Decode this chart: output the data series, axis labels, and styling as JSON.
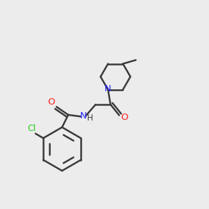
{
  "bg_color": "#ececec",
  "bond_color": "#3a3a3a",
  "N_color": "#2020ff",
  "O_color": "#ff2020",
  "Cl_color": "#22cc22",
  "bond_width": 1.8,
  "fig_size": [
    3.0,
    3.0
  ],
  "dpi": 100,
  "xlim": [
    0,
    10
  ],
  "ylim": [
    0,
    10
  ],
  "font_size": 9.5
}
